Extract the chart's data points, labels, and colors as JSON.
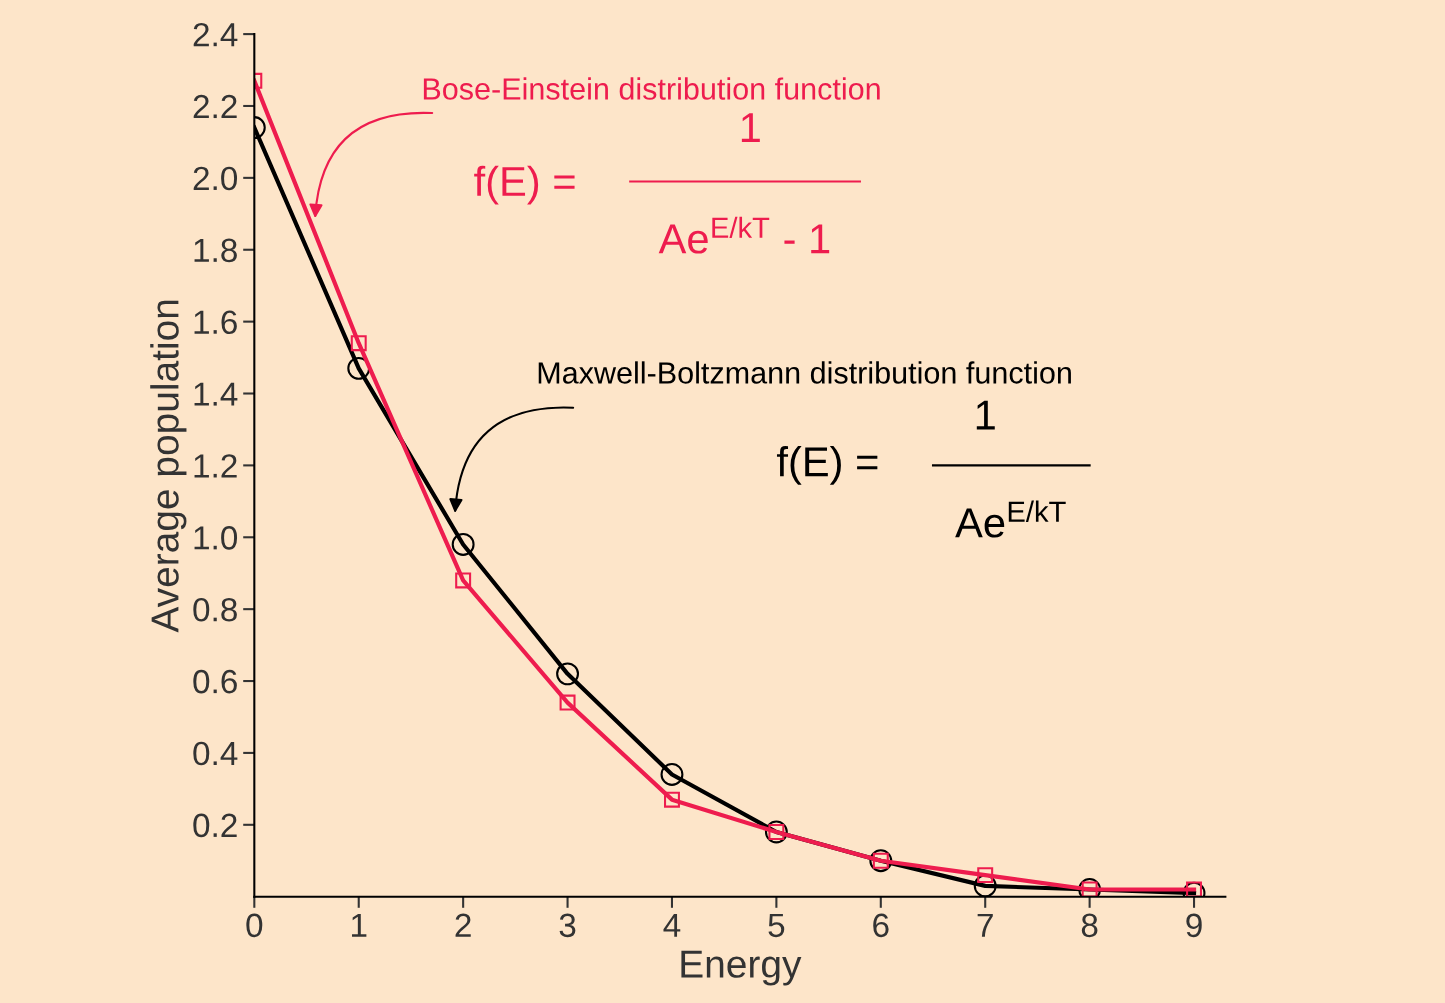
{
  "chart_data": {
    "type": "line",
    "xlabel": "Energy",
    "ylabel": "Average population",
    "x": [
      0,
      1,
      2,
      3,
      4,
      5,
      6,
      7,
      8,
      9
    ],
    "series": [
      {
        "color": "#000000",
        "marker": "circle",
        "values": [
          2.14,
          1.47,
          0.98,
          0.62,
          0.34,
          0.18,
          0.1,
          0.03,
          0.02,
          0.01
        ]
      },
      {
        "color": "#ee1c4e",
        "marker": "square",
        "values": [
          2.27,
          1.54,
          0.88,
          0.54,
          0.27,
          0.18,
          0.1,
          0.06,
          0.02,
          0.02
        ]
      }
    ],
    "xlim": [
      0,
      9.3
    ],
    "xticks": [
      0,
      1,
      2,
      3,
      4,
      5,
      6,
      7,
      8,
      9
    ],
    "ylim": [
      0,
      2.4
    ],
    "yticks": [
      0.2,
      0.4,
      0.6,
      0.8,
      {
        "value": 1,
        "label": "1.0"
      },
      1.2,
      1.4,
      1.6,
      1.8,
      {
        "value": 2,
        "label": "2.0"
      },
      2.2,
      2.4
    ],
    "grid": false,
    "legend": false,
    "line_style": "solid",
    "annotations": [
      "Bose-Einstein distribution function",
      "f(E) =",
      "1",
      "Ae$^{E/kT}$ - 1",
      "Maxwell-Boltzmann distribution function",
      "f(E) =",
      "1",
      "Ae$^{E/kT}$"
    ]
  }
}
